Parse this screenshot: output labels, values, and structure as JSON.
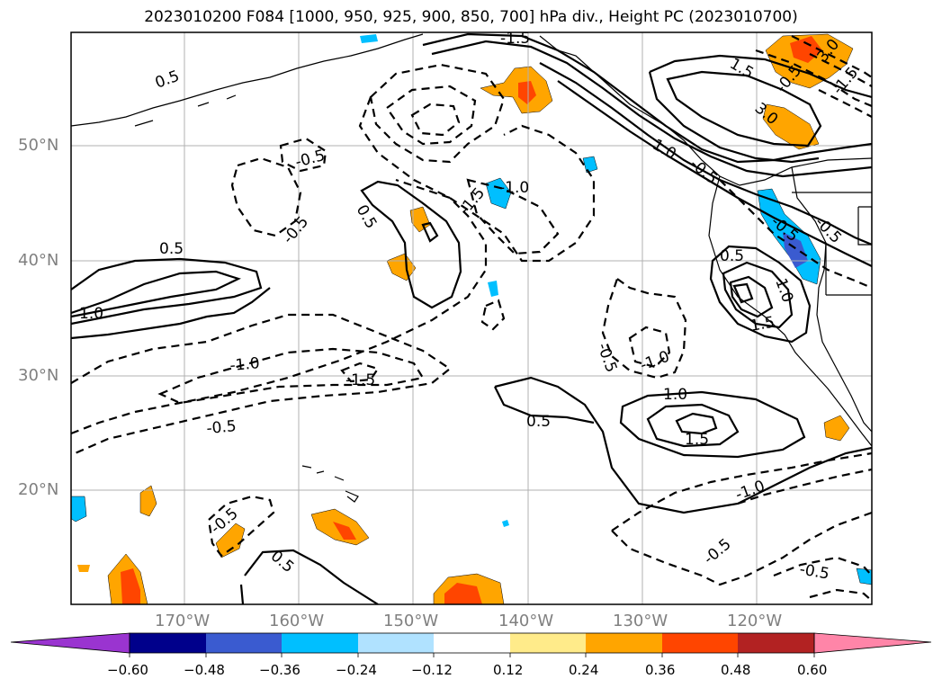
{
  "title": "2023010200 F084 [1000, 950, 925, 900, 850, 700] hPa div., Height PC (2023010700)",
  "lat_labels": [
    "50°N",
    "40°N",
    "30°N",
    "20°N"
  ],
  "lon_labels": [
    "170°W",
    "160°W",
    "150°W",
    "140°W",
    "130°W",
    "120°W"
  ],
  "colorbar": {
    "ticks": [
      "−0.60",
      "−0.48",
      "−0.36",
      "−0.24",
      "−0.12",
      "0.12",
      "0.24",
      "0.36",
      "0.48",
      "0.60"
    ],
    "colors": [
      "#9a34d0",
      "#00008b",
      "#3a5bd0",
      "#00bfff",
      "#b0e2ff",
      "#ffffff",
      "#ffeb8a",
      "#ffa500",
      "#ff4500",
      "#b22222",
      "#ff85a8"
    ]
  },
  "contour_labels": {
    "l1": "0.5",
    "l2": "0.5",
    "l3": "1.0",
    "l4": "-0.5",
    "l5": "-0.5",
    "l6": "0.5",
    "l7": "-1.0",
    "l8": "-1.5",
    "l9": "-1.0",
    "l10": "-1.5",
    "l11": "-0.5",
    "l12": "1.0",
    "l13": "0.5",
    "l14": "1.5",
    "l15": "-0.5",
    "l16": "-1.0",
    "l17": "-1.0",
    "l18": "-0.5",
    "l19": "-0.5",
    "l20": "-0.5",
    "l21": "-1.5",
    "l22": "1.5",
    "l23": "3.0",
    "l24": "1.0",
    "l25": "-0.5",
    "l26": "0.5",
    "l27": "1.5",
    "l28": "-0.5",
    "l29": "-0.5",
    "l30": "3.0",
    "l31": "-0.5",
    "l32": "0.5",
    "l33": "-1.5",
    "l34": "1.0"
  }
}
